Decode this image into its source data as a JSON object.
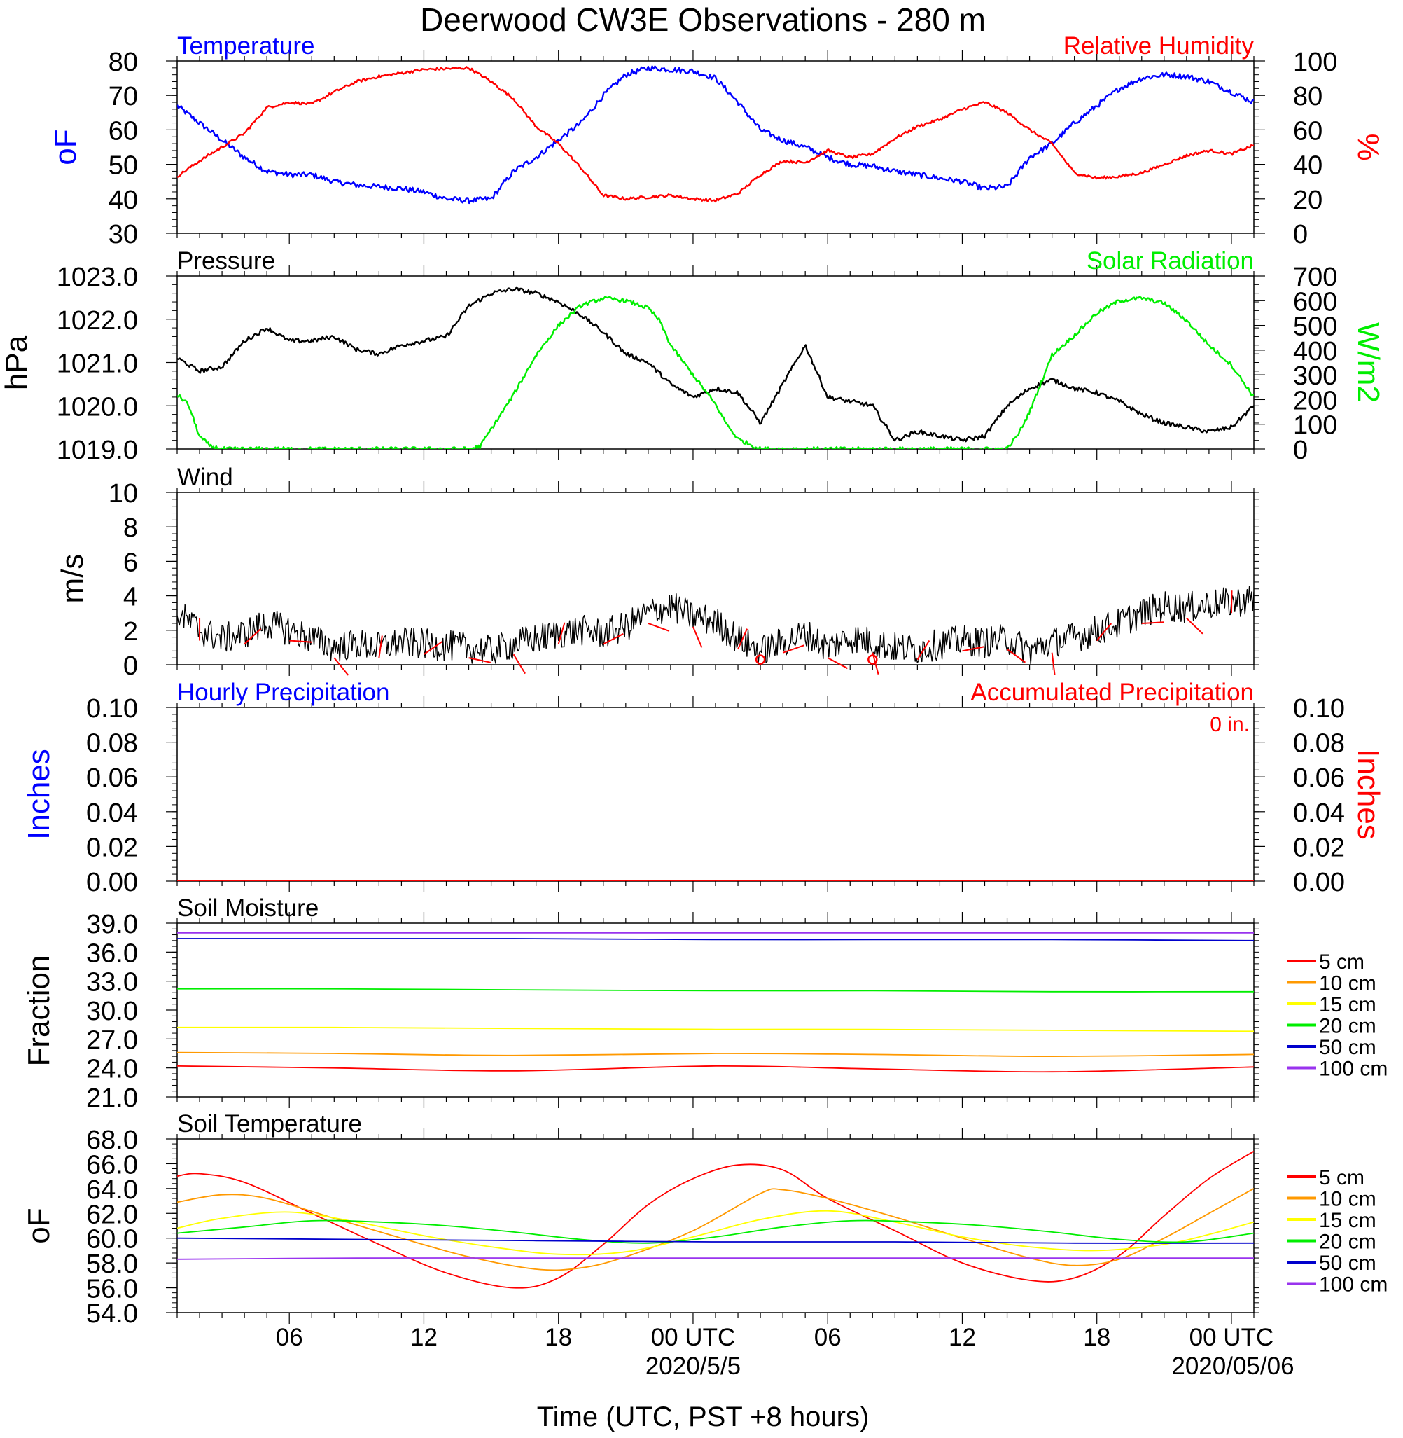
{
  "title": "Deerwood CW3E Observations - 280 m",
  "x_axis": {
    "label": "Time (UTC, PST +8 hours)",
    "tick_labels": [
      "06",
      "12",
      "18",
      "00 UTC",
      "06",
      "12",
      "18",
      "00 UTC"
    ],
    "tick_hours": [
      6,
      12,
      18,
      24,
      30,
      36,
      42,
      48
    ],
    "date_labels": [
      "2020/5/5",
      "2020/05/06"
    ],
    "date_hours": [
      24,
      48
    ],
    "range_hours": [
      1,
      49
    ]
  },
  "colors": {
    "temperature": "#0000ff",
    "humidity": "#ff0000",
    "pressure": "#000000",
    "solar": "#00ee00",
    "wind": "#000000",
    "wind_barb": "#ff0000",
    "hourly_precip": "#0000ff",
    "accum_precip": "#ff0000",
    "depth_5": "#ff0000",
    "depth_10": "#ff9900",
    "depth_15": "#ffff00",
    "depth_20": "#00ee00",
    "depth_50": "#0000cc",
    "depth_100": "#9933ee"
  },
  "chart_data": [
    {
      "type": "line",
      "panel": "temperature-humidity",
      "left_label": "Temperature",
      "right_label": "Relative Humidity",
      "left_unit": "oF",
      "right_unit": "%",
      "left_ticks": [
        "30",
        "40",
        "50",
        "60",
        "70",
        "80"
      ],
      "right_ticks": [
        "0",
        "20",
        "40",
        "60",
        "80",
        "100"
      ],
      "ylim_left": [
        30,
        80
      ],
      "ylim_right": [
        0,
        100
      ],
      "series": [
        {
          "name": "Temperature",
          "axis": "left",
          "x": [
            1,
            2,
            3,
            4,
            5,
            6,
            7,
            8,
            9,
            10,
            11,
            12,
            13,
            14,
            15,
            16,
            17,
            18,
            19,
            20,
            21,
            22,
            23,
            24,
            25,
            26,
            27,
            28,
            29,
            30,
            31,
            32,
            33,
            34,
            35,
            36,
            37,
            38,
            39,
            40,
            41,
            42,
            43,
            44,
            45,
            46,
            47,
            48,
            49
          ],
          "y": [
            67,
            62,
            57,
            52,
            48,
            47,
            47,
            45,
            44,
            43.5,
            43,
            42,
            40,
            39.5,
            40,
            48,
            52,
            57,
            62,
            70,
            76,
            78,
            77.5,
            77,
            75,
            68,
            60,
            57,
            55,
            52,
            50,
            49.5,
            48,
            47,
            46,
            45,
            43,
            43.5,
            52,
            56,
            62,
            67,
            72,
            75,
            76,
            75.5,
            74,
            71,
            68
          ]
        },
        {
          "name": "Relative Humidity",
          "axis": "right",
          "x": [
            1,
            2,
            3,
            4,
            5,
            6,
            7,
            8,
            9,
            10,
            11,
            12,
            13,
            14,
            15,
            16,
            17,
            18,
            19,
            20,
            21,
            22,
            23,
            24,
            25,
            26,
            27,
            28,
            29,
            30,
            31,
            32,
            33,
            34,
            35,
            36,
            37,
            38,
            39,
            40,
            41,
            42,
            43,
            44,
            45,
            46,
            47,
            48,
            49
          ],
          "y": [
            33,
            42,
            50,
            58,
            73,
            76,
            75,
            82,
            88,
            91,
            93,
            95,
            95.5,
            96,
            88,
            78,
            62,
            52,
            38,
            22,
            20,
            21,
            22,
            20,
            19,
            23,
            34,
            42,
            41,
            48,
            44,
            46,
            55,
            62,
            66,
            72,
            76,
            70,
            60,
            52,
            35,
            32,
            33,
            35,
            40,
            45,
            48,
            46,
            51
          ]
        }
      ]
    },
    {
      "type": "line",
      "panel": "pressure-solar",
      "left_label": "Pressure",
      "right_label": "Solar Radiation",
      "left_unit": "hPa",
      "right_unit": "W/m2",
      "left_ticks": [
        "1019.0",
        "1020.0",
        "1021.0",
        "1022.0",
        "1023.0"
      ],
      "right_ticks": [
        "0",
        "100",
        "200",
        "300",
        "400",
        "500",
        "600",
        "700"
      ],
      "ylim_left": [
        1019.0,
        1023.0
      ],
      "ylim_right": [
        0,
        700
      ],
      "series": [
        {
          "name": "Pressure",
          "axis": "left",
          "x": [
            1,
            2,
            3,
            4,
            5,
            6,
            7,
            8,
            9,
            10,
            11,
            12,
            13,
            14,
            15,
            16,
            17,
            18,
            19,
            20,
            21,
            22,
            23,
            24,
            25,
            26,
            27,
            28,
            29,
            30,
            31,
            32,
            33,
            34,
            35,
            36,
            37,
            38,
            39,
            40,
            41,
            42,
            43,
            44,
            45,
            46,
            47,
            48,
            49
          ],
          "y": [
            1021.1,
            1020.8,
            1020.9,
            1021.5,
            1021.8,
            1021.5,
            1021.5,
            1021.6,
            1021.3,
            1021.2,
            1021.4,
            1021.5,
            1021.6,
            1022.3,
            1022.6,
            1022.7,
            1022.6,
            1022.4,
            1022.1,
            1021.7,
            1021.2,
            1021.0,
            1020.5,
            1020.2,
            1020.4,
            1020.3,
            1019.6,
            1020.5,
            1021.4,
            1020.2,
            1020.1,
            1020.0,
            1019.2,
            1019.4,
            1019.3,
            1019.2,
            1019.3,
            1020.0,
            1020.4,
            1020.6,
            1020.4,
            1020.3,
            1020.1,
            1019.8,
            1019.6,
            1019.5,
            1019.4,
            1019.5,
            1020.0
          ]
        },
        {
          "name": "Solar Radiation",
          "axis": "right",
          "x": [
            1,
            1.5,
            2,
            2.5,
            3,
            4,
            10,
            14,
            14.5,
            15,
            16,
            17,
            18,
            19,
            20,
            21,
            22,
            22.5,
            23,
            24,
            25,
            25.5,
            26,
            27,
            35,
            38,
            38.5,
            39,
            40,
            41,
            42,
            43,
            44,
            45,
            46,
            47,
            48,
            49
          ],
          "y": [
            220,
            180,
            50,
            10,
            0,
            0,
            0,
            0,
            10,
            80,
            220,
            380,
            500,
            580,
            610,
            600,
            570,
            520,
            420,
            300,
            180,
            100,
            40,
            0,
            0,
            0,
            60,
            150,
            380,
            460,
            550,
            600,
            610,
            590,
            520,
            420,
            340,
            210
          ]
        }
      ]
    },
    {
      "type": "line",
      "panel": "wind",
      "left_label": "Wind",
      "left_unit": "m/s",
      "left_ticks": [
        "0",
        "2",
        "4",
        "6",
        "8",
        "10"
      ],
      "ylim_left": [
        0,
        10
      ],
      "series": [
        {
          "name": "Wind",
          "axis": "left",
          "x": [
            1,
            2,
            3,
            4,
            5,
            6,
            7,
            8,
            9,
            10,
            11,
            12,
            13,
            14,
            15,
            16,
            17,
            18,
            19,
            20,
            21,
            22,
            23,
            24,
            25,
            26,
            27,
            28,
            29,
            30,
            31,
            32,
            33,
            34,
            35,
            36,
            37,
            38,
            39,
            40,
            41,
            42,
            43,
            44,
            45,
            46,
            47,
            48,
            49
          ],
          "y": [
            3.0,
            2.0,
            1.5,
            1.8,
            2.4,
            2.0,
            1.5,
            1.0,
            1.2,
            1.0,
            1.3,
            1.2,
            1.1,
            1.0,
            0.8,
            1.2,
            1.5,
            1.8,
            2.0,
            1.8,
            2.2,
            3.0,
            3.4,
            2.8,
            2.5,
            1.5,
            0.8,
            1.3,
            1.8,
            1.0,
            1.6,
            1.3,
            1.0,
            0.9,
            1.2,
            1.4,
            1.3,
            1.5,
            0.8,
            1.3,
            1.6,
            2.0,
            2.4,
            3.0,
            3.4,
            3.3,
            3.5,
            3.6,
            3.8
          ]
        }
      ],
      "barbs_hours": [
        2,
        4,
        6,
        8,
        10,
        12,
        14,
        16,
        18,
        20,
        22,
        24,
        26,
        28,
        30,
        32,
        34,
        36,
        38,
        40,
        42,
        44,
        46,
        48
      ],
      "calm_markers_hours": [
        27,
        32
      ]
    },
    {
      "type": "line",
      "panel": "precipitation",
      "left_label": "Hourly Precipitation",
      "right_label": "Accumulated Precipitation",
      "annotation": "0 in.",
      "left_unit": "Inches",
      "right_unit": "Inches",
      "left_ticks": [
        "0.00",
        "0.02",
        "0.04",
        "0.06",
        "0.08",
        "0.10"
      ],
      "right_ticks": [
        "0.00",
        "0.02",
        "0.04",
        "0.06",
        "0.08",
        "0.10"
      ],
      "ylim_left": [
        0,
        0.1
      ],
      "ylim_right": [
        0,
        0.1
      ],
      "series": [
        {
          "name": "Hourly Precipitation",
          "axis": "left",
          "x": [
            1,
            49
          ],
          "y": [
            0,
            0
          ]
        },
        {
          "name": "Accumulated Precipitation",
          "axis": "right",
          "x": [
            1,
            49
          ],
          "y": [
            0,
            0
          ]
        }
      ]
    },
    {
      "type": "line",
      "panel": "soil-moisture",
      "left_label": "Soil Moisture",
      "left_unit": "Fraction",
      "left_ticks": [
        "21.0",
        "24.0",
        "27.0",
        "30.0",
        "33.0",
        "36.0",
        "39.0"
      ],
      "ylim_left": [
        21,
        39
      ],
      "legend": [
        "5 cm",
        "10 cm",
        "15 cm",
        "20 cm",
        "50 cm",
        "100 cm"
      ],
      "series": [
        {
          "name": "5 cm",
          "axis": "left",
          "x": [
            1,
            8,
            16,
            25,
            32,
            40,
            49
          ],
          "y": [
            24.2,
            24.0,
            23.7,
            24.2,
            23.9,
            23.6,
            24.1
          ]
        },
        {
          "name": "10 cm",
          "axis": "left",
          "x": [
            1,
            8,
            16,
            25,
            32,
            40,
            49
          ],
          "y": [
            25.6,
            25.5,
            25.3,
            25.5,
            25.4,
            25.2,
            25.4
          ]
        },
        {
          "name": "15 cm",
          "axis": "left",
          "x": [
            1,
            8,
            16,
            25,
            32,
            40,
            49
          ],
          "y": [
            28.2,
            28.2,
            28.1,
            28.0,
            28.0,
            27.9,
            27.8
          ]
        },
        {
          "name": "20 cm",
          "axis": "left",
          "x": [
            1,
            8,
            16,
            25,
            32,
            40,
            49
          ],
          "y": [
            32.2,
            32.2,
            32.1,
            32.0,
            32.0,
            31.9,
            31.9
          ]
        },
        {
          "name": "50 cm",
          "axis": "left",
          "x": [
            1,
            8,
            16,
            25,
            32,
            40,
            49
          ],
          "y": [
            37.4,
            37.4,
            37.4,
            37.3,
            37.3,
            37.3,
            37.2
          ]
        },
        {
          "name": "100 cm",
          "axis": "left",
          "x": [
            1,
            8,
            16,
            25,
            32,
            40,
            49
          ],
          "y": [
            38.0,
            38.0,
            38.0,
            38.0,
            38.0,
            38.0,
            38.0
          ]
        }
      ]
    },
    {
      "type": "line",
      "panel": "soil-temperature",
      "left_label": "Soil Temperature",
      "left_unit": "oF",
      "left_ticks": [
        "54.0",
        "56.0",
        "58.0",
        "60.0",
        "62.0",
        "64.0",
        "66.0",
        "68.0"
      ],
      "ylim_left": [
        54,
        68
      ],
      "legend": [
        "5 cm",
        "10 cm",
        "15 cm",
        "20 cm",
        "50 cm",
        "100 cm"
      ],
      "series": [
        {
          "name": "5 cm",
          "axis": "left",
          "x": [
            1,
            2,
            4,
            7,
            10,
            13,
            16,
            18,
            20,
            22,
            24,
            26,
            28,
            30,
            33,
            36,
            39,
            41,
            43,
            45,
            47,
            49
          ],
          "y": [
            65.0,
            65.2,
            64.5,
            62.0,
            59.5,
            57.2,
            56.0,
            56.8,
            59.5,
            62.7,
            64.8,
            65.9,
            65.5,
            63.2,
            60.6,
            58.0,
            56.6,
            56.8,
            58.6,
            61.8,
            64.8,
            67.0
          ]
        },
        {
          "name": "10 cm",
          "axis": "left",
          "x": [
            1,
            3,
            5,
            8,
            11,
            14,
            17,
            19,
            21,
            24,
            27,
            28,
            30,
            33,
            36,
            39,
            41,
            43,
            45,
            47,
            49
          ],
          "y": [
            62.9,
            63.5,
            63.2,
            61.6,
            60.0,
            58.5,
            57.5,
            57.6,
            58.5,
            60.6,
            63.6,
            63.9,
            63.2,
            61.7,
            60.0,
            58.4,
            57.8,
            58.3,
            60.0,
            62.0,
            64.0
          ]
        },
        {
          "name": "15 cm",
          "axis": "left",
          "x": [
            1,
            3,
            6,
            9,
            12,
            15,
            18,
            21,
            24,
            27,
            30,
            33,
            36,
            39,
            42,
            45,
            47,
            49
          ],
          "y": [
            60.8,
            61.6,
            62.1,
            61.3,
            60.2,
            59.3,
            58.7,
            58.9,
            60.1,
            61.5,
            62.2,
            61.3,
            60.1,
            59.3,
            59.0,
            59.5,
            60.3,
            61.3
          ]
        },
        {
          "name": "20 cm",
          "axis": "left",
          "x": [
            1,
            4,
            7,
            10,
            13,
            16,
            19,
            22,
            25,
            28,
            31,
            34,
            37,
            40,
            43,
            46,
            49
          ],
          "y": [
            60.4,
            60.9,
            61.4,
            61.3,
            61.0,
            60.5,
            59.9,
            59.6,
            60.1,
            60.9,
            61.4,
            61.3,
            61.0,
            60.5,
            59.9,
            59.7,
            60.4
          ]
        },
        {
          "name": "50 cm",
          "axis": "left",
          "x": [
            1,
            9,
            17,
            25,
            33,
            41,
            49
          ],
          "y": [
            60.0,
            59.9,
            59.8,
            59.7,
            59.7,
            59.6,
            59.6
          ]
        },
        {
          "name": "100 cm",
          "axis": "left",
          "x": [
            1,
            9,
            17,
            25,
            33,
            41,
            49
          ],
          "y": [
            58.3,
            58.4,
            58.4,
            58.4,
            58.4,
            58.4,
            58.4
          ]
        }
      ]
    }
  ]
}
